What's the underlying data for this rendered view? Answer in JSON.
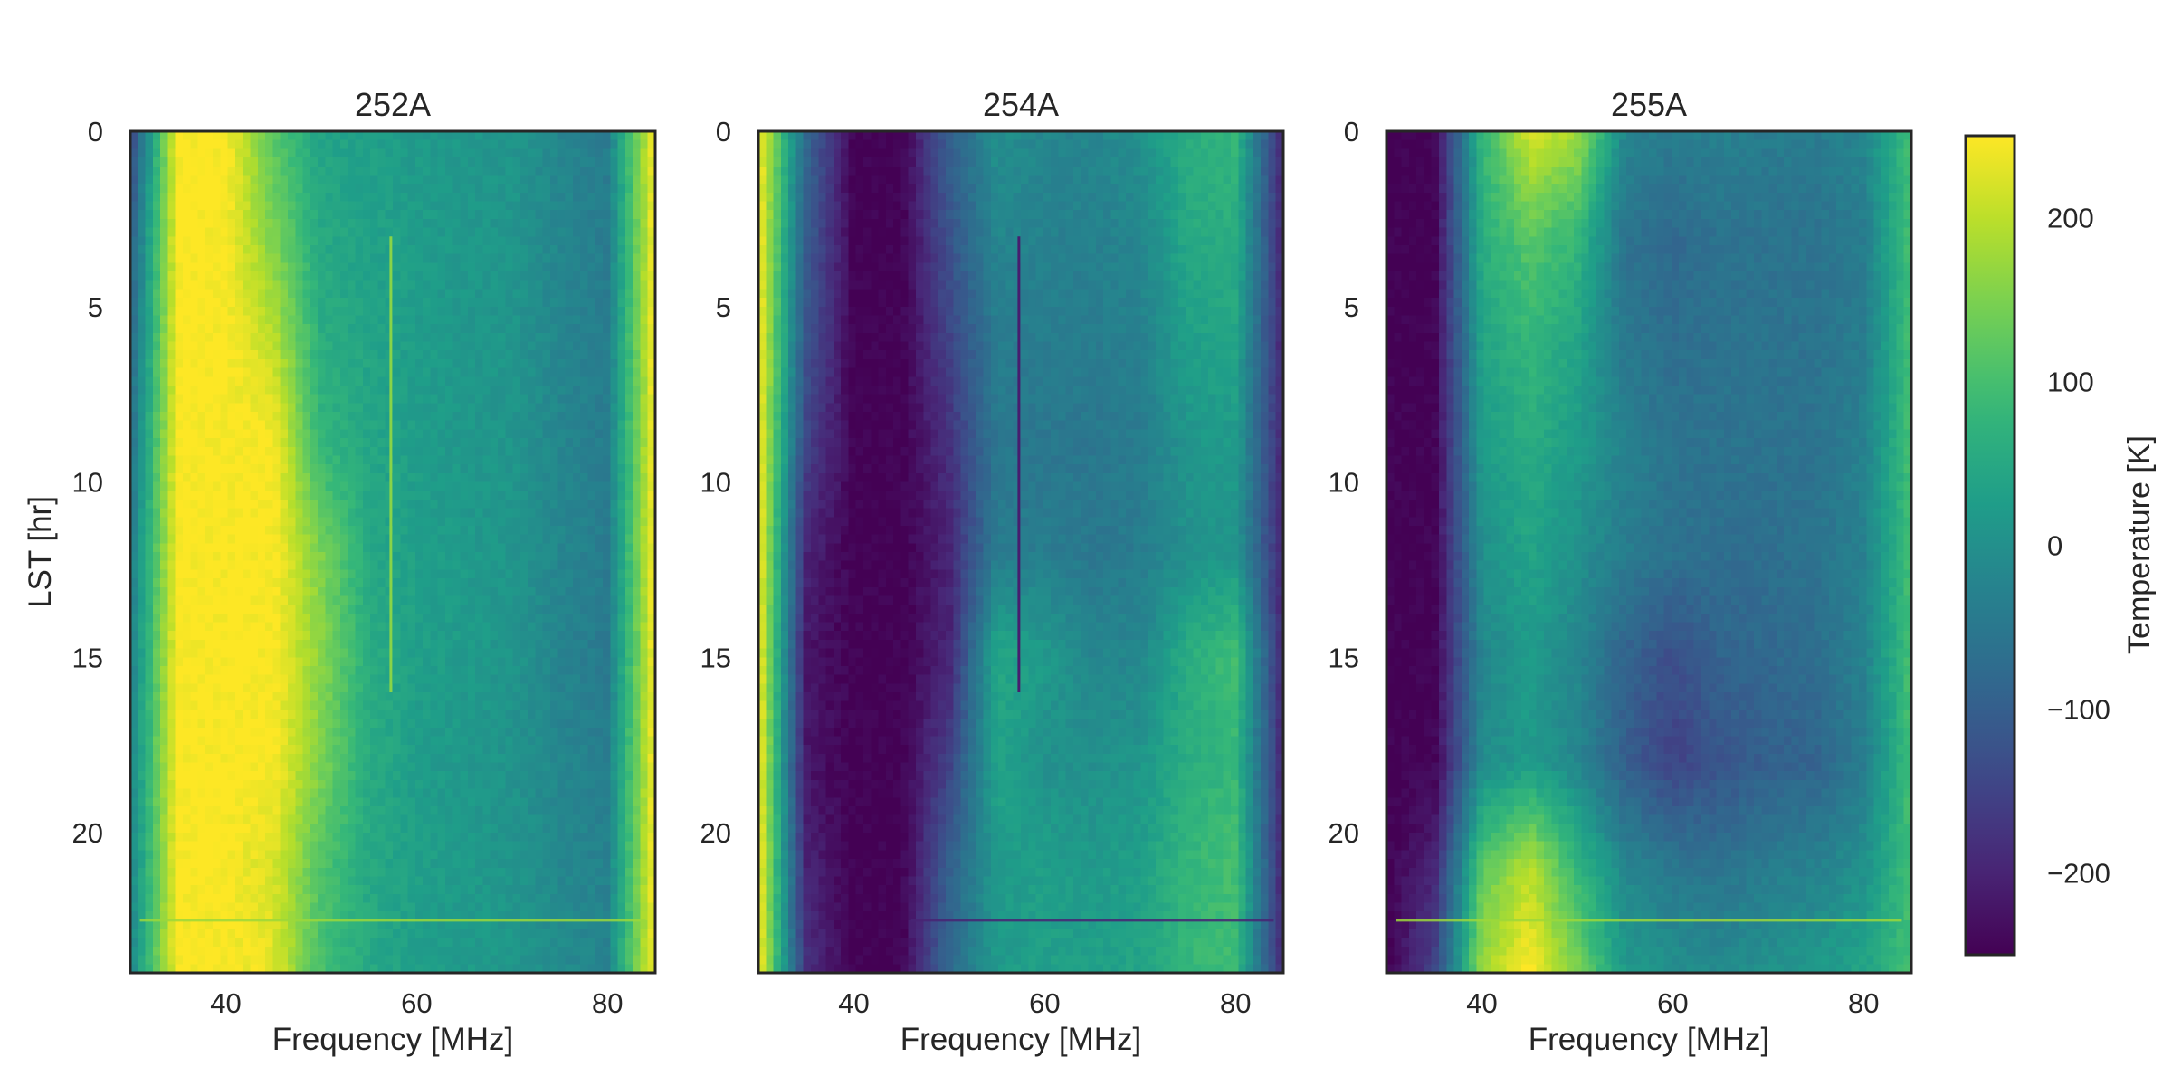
{
  "chart_data": [
    {
      "type": "heatmap",
      "title": "252A",
      "xlabel": "Frequency [MHz]",
      "ylabel": "LST [hr]",
      "xlim": [
        30,
        85
      ],
      "ylim": [
        24,
        0
      ],
      "x_ticks": [
        40,
        60,
        80
      ],
      "y_ticks": [
        0,
        5,
        10,
        15,
        20
      ],
      "frequency_MHz": [
        30,
        35,
        40,
        45,
        50,
        55,
        60,
        65,
        70,
        75,
        80,
        85
      ],
      "lst_hr": [
        0,
        3,
        6,
        9,
        12,
        15,
        18,
        21,
        24
      ],
      "temperature_K": [
        [
          -150,
          250,
          250,
          120,
          40,
          30,
          20,
          15,
          10,
          -20,
          -40,
          250
        ],
        [
          -100,
          250,
          250,
          150,
          50,
          35,
          25,
          15,
          10,
          -20,
          -40,
          250
        ],
        [
          -80,
          250,
          250,
          200,
          60,
          40,
          25,
          15,
          10,
          -20,
          -40,
          250
        ],
        [
          -60,
          250,
          250,
          250,
          80,
          45,
          25,
          15,
          10,
          -20,
          -40,
          250
        ],
        [
          -40,
          250,
          250,
          250,
          150,
          50,
          30,
          20,
          10,
          -20,
          -40,
          250
        ],
        [
          -30,
          250,
          250,
          250,
          160,
          60,
          30,
          20,
          10,
          -25,
          -45,
          250
        ],
        [
          -20,
          250,
          250,
          250,
          150,
          55,
          25,
          15,
          5,
          -20,
          -35,
          250
        ],
        [
          -20,
          250,
          250,
          220,
          110,
          50,
          30,
          20,
          10,
          -15,
          -30,
          250
        ],
        [
          -20,
          250,
          250,
          230,
          100,
          50,
          30,
          20,
          15,
          -10,
          -25,
          250
        ]
      ],
      "features": [
        "vertical RFI line near 57 MHz from ~3 to ~16 hr",
        "horizontal line near 22.5 hr"
      ]
    },
    {
      "type": "heatmap",
      "title": "254A",
      "xlabel": "Frequency [MHz]",
      "ylabel": "",
      "xlim": [
        30,
        85
      ],
      "ylim": [
        24,
        0
      ],
      "x_ticks": [
        40,
        60,
        80
      ],
      "y_ticks": [
        0,
        5,
        10,
        15,
        20
      ],
      "frequency_MHz": [
        30,
        35,
        40,
        45,
        50,
        55,
        60,
        65,
        70,
        75,
        80,
        85
      ],
      "lst_hr": [
        0,
        3,
        6,
        9,
        12,
        15,
        18,
        21,
        24
      ],
      "temperature_K": [
        [
          250,
          -80,
          -250,
          -250,
          -100,
          0,
          -20,
          -20,
          0,
          60,
          80,
          -200
        ],
        [
          250,
          -100,
          -250,
          -250,
          -120,
          -20,
          -30,
          -30,
          -20,
          50,
          60,
          -200
        ],
        [
          250,
          -120,
          -250,
          -250,
          -150,
          -40,
          -40,
          -40,
          -30,
          30,
          40,
          -200
        ],
        [
          250,
          -150,
          -250,
          -250,
          -180,
          -50,
          -50,
          -50,
          -40,
          10,
          20,
          -200
        ],
        [
          250,
          -200,
          -250,
          -250,
          -200,
          -40,
          -40,
          -50,
          -40,
          0,
          10,
          -200
        ],
        [
          250,
          -220,
          -250,
          -250,
          -200,
          50,
          20,
          -20,
          -20,
          60,
          100,
          -200
        ],
        [
          250,
          -220,
          -250,
          -250,
          -150,
          40,
          0,
          0,
          10,
          60,
          80,
          -200
        ],
        [
          250,
          -200,
          -250,
          -250,
          -100,
          20,
          30,
          20,
          30,
          80,
          100,
          -200
        ],
        [
          250,
          -180,
          -250,
          -250,
          -80,
          20,
          30,
          30,
          40,
          80,
          90,
          -200
        ]
      ],
      "features": [
        "vertical dark line near 57 MHz from ~3 to ~16 hr",
        "horizontal dark line near 22.5 hr"
      ]
    },
    {
      "type": "heatmap",
      "title": "255A",
      "xlabel": "Frequency [MHz]",
      "ylabel": "",
      "xlim": [
        30,
        85
      ],
      "ylim": [
        24,
        0
      ],
      "x_ticks": [
        40,
        60,
        80
      ],
      "y_ticks": [
        0,
        5,
        10,
        15,
        20
      ],
      "frequency_MHz": [
        30,
        35,
        40,
        45,
        50,
        55,
        60,
        65,
        70,
        75,
        80,
        85
      ],
      "lst_hr": [
        0,
        3,
        6,
        9,
        12,
        15,
        18,
        21,
        24
      ],
      "temperature_K": [
        [
          -250,
          -250,
          80,
          220,
          180,
          -20,
          -40,
          -30,
          -40,
          -40,
          -20,
          100
        ],
        [
          -250,
          -250,
          60,
          120,
          80,
          -60,
          -80,
          -60,
          -60,
          -60,
          -40,
          100
        ],
        [
          -250,
          -250,
          40,
          80,
          40,
          -50,
          -70,
          -60,
          -60,
          -60,
          -40,
          100
        ],
        [
          -250,
          -250,
          20,
          60,
          20,
          -30,
          -60,
          -60,
          -60,
          -60,
          -30,
          100
        ],
        [
          -250,
          -250,
          0,
          40,
          0,
          -40,
          -60,
          -70,
          -70,
          -60,
          -30,
          100
        ],
        [
          -250,
          -250,
          -20,
          20,
          -20,
          -90,
          -130,
          -90,
          -80,
          -70,
          -30,
          100
        ],
        [
          -250,
          -250,
          -10,
          20,
          -20,
          -100,
          -150,
          -120,
          -100,
          -90,
          -40,
          100
        ],
        [
          -250,
          -200,
          120,
          200,
          80,
          -20,
          -50,
          -60,
          -40,
          -30,
          0,
          100
        ],
        [
          -250,
          -150,
          180,
          250,
          150,
          20,
          0,
          -10,
          0,
          20,
          40,
          100
        ]
      ],
      "features": [
        "horizontal line near 22.5 hr"
      ]
    }
  ],
  "colorbar": {
    "label": "Temperature [K]",
    "min": -250,
    "max": 250,
    "ticks": [
      200,
      100,
      0,
      -100,
      -200
    ],
    "tick_labels": [
      "200",
      "100",
      "0",
      "−100",
      "−200"
    ],
    "colormap": "viridis"
  }
}
